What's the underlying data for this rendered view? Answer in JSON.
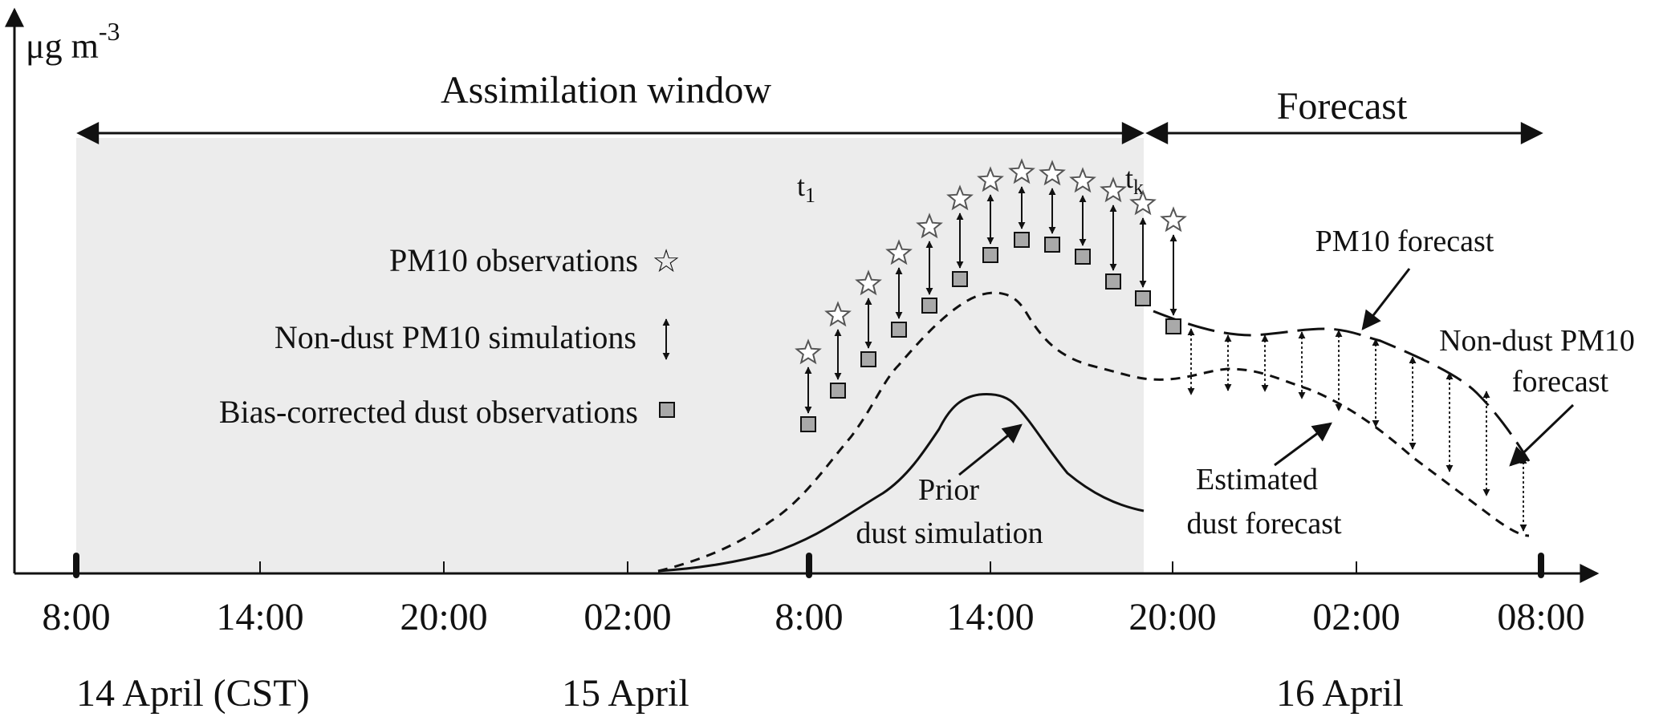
{
  "axis": {
    "unit_base": "μg m",
    "unit_exp": "-3",
    "time_ticks": [
      "8:00",
      "14:00",
      "20:00",
      "02:00",
      "8:00",
      "14:00",
      "20:00",
      "02:00",
      "08:00"
    ],
    "dates": [
      "14  April (CST)",
      "15  April",
      "16  April"
    ]
  },
  "windows": {
    "assimilation": "Assimilation window",
    "forecast": "Forecast"
  },
  "time_marks": {
    "t1_base": "t",
    "t1_sub": "1",
    "tk_base": "t",
    "tk_sub": "k"
  },
  "legend": {
    "observations": "PM10 observations",
    "non_dust": "Non-dust PM10 simulations",
    "bias_corrected": "Bias-corrected dust observations",
    "star_symbol": "☆"
  },
  "annotations": {
    "pm10_forecast": "PM10 forecast",
    "non_dust_forecast_1": "Non-dust PM10",
    "non_dust_forecast_2": "forecast",
    "estimated_1": "Estimated",
    "estimated_2": "dust forecast",
    "prior_1": "Prior",
    "prior_2": "dust simulation"
  },
  "colors": {
    "shade": "#ececec",
    "square_fill": "#a9a9a9",
    "ink": "#111111"
  }
}
